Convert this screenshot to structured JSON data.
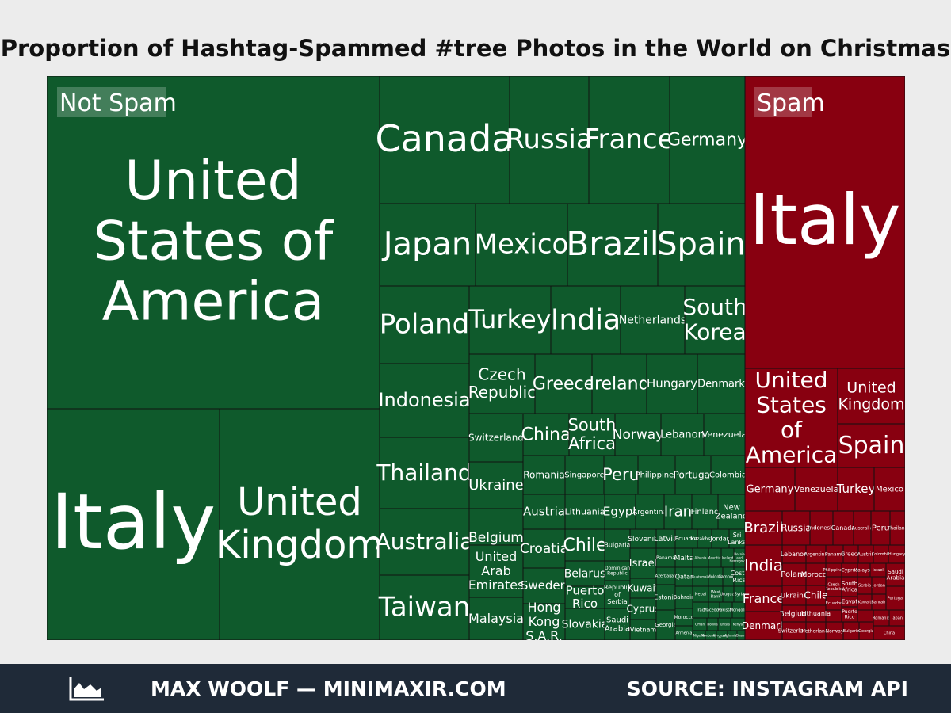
{
  "title": "Proportion of Hashtag-Spammed #tree Photos in the World on Christmas",
  "footer": {
    "credit": "MAX WOOLF — MINIMAXIR.COM",
    "source": "SOURCE: INSTAGRAM API",
    "icon": "area-chart-icon"
  },
  "colors": {
    "not_spam": "#0f5a2c",
    "spam": "#880010",
    "border": "#111111",
    "background": "#ececec",
    "footer": "#1f2a38"
  },
  "chart_data": {
    "type": "treemap",
    "groups": [
      {
        "name": "Not Spam",
        "color": "#0f5a2c",
        "labeled_cells": [
          "United States of America",
          "Italy",
          "United Kingdom",
          "Canada",
          "Russia",
          "France",
          "Germany",
          "Japan",
          "Mexico",
          "Brazil",
          "Spain",
          "Poland",
          "Turkey",
          "India",
          "Netherlands",
          "South Korea",
          "Indonesia",
          "Czech Republic",
          "Greece",
          "Ireland",
          "Hungary",
          "Denmark",
          "Switzerland",
          "China",
          "South Africa",
          "Norway",
          "Lebanon",
          "Venezuela",
          "Thailand",
          "Ukraine",
          "Romania",
          "Singapore",
          "Peru",
          "Philippines",
          "Portugal",
          "Colombia",
          "Australia",
          "Belgium",
          "Austria",
          "Lithuania",
          "Egypt",
          "Argentina",
          "Iran",
          "Finland",
          "New Zealand",
          "United Arab Emirates",
          "Croatia",
          "Chile",
          "Bulgaria",
          "Slovenia",
          "Latvia",
          "Ecuador",
          "Kazakhstan",
          "Jordan",
          "Sri Lanka",
          "Taiwan",
          "Malaysia",
          "Sweden",
          "Hong Kong S.A.R.",
          "Belarus",
          "Puerto Rico",
          "Slovakia",
          "Dominican Republic",
          "Republic of Serbia",
          "Saudi Arabia",
          "Israel",
          "Kuwait",
          "Cyprus",
          "Vietnam",
          "Panama",
          "Malta",
          "Azerbaijan",
          "Qatar",
          "Estonia",
          "Georgia",
          "Bahrain",
          "Morocco",
          "Armenia",
          "Albania",
          "Mauritius",
          "Iceland",
          "Bosnia and Herzegovina",
          "Guatemala",
          "Moldova",
          "Cambodia",
          "Costa Rica",
          "Nepal",
          "West Bank",
          "Uruguay",
          "Syria",
          "Iraq",
          "Macedonia",
          "Pakistan",
          "Mongolia",
          "Oman",
          "Bolivia",
          "Tunisia",
          "Kenya",
          "Nigeria",
          "Montenegro",
          "Kyrgyzstan",
          "Afghanistan",
          "Ghana",
          "Cuba"
        ]
      },
      {
        "name": "Spam",
        "color": "#880010",
        "labeled_cells": [
          "Italy",
          "United States of America",
          "United Kingdom",
          "Spain",
          "Germany",
          "Venezuela",
          "Turkey",
          "Mexico",
          "Brazil",
          "Russia",
          "Indonesia",
          "Canada",
          "Australia",
          "Peru",
          "Thailand",
          "India",
          "Lebanon",
          "Argentina",
          "Panama",
          "Greece",
          "Austria",
          "Colombia",
          "Hungary",
          "Poland",
          "Morocco",
          "Philippines",
          "Cyprus",
          "Malaysia",
          "Israel",
          "Czech Republic",
          "South Africa",
          "Saudi Arabia",
          "France",
          "Ukraine",
          "Chile",
          "Ecuador",
          "Egypt",
          "Belgium",
          "Lithuania",
          "Denmark",
          "Switzerland",
          "Netherlands",
          "Norway",
          "Puerto Rico",
          "Bulgaria",
          "Serbia",
          "Jordan",
          "Kuwait",
          "Bahrain",
          "Georgia",
          "Romania",
          "Portugal",
          "Japan",
          "China"
        ]
      }
    ]
  }
}
